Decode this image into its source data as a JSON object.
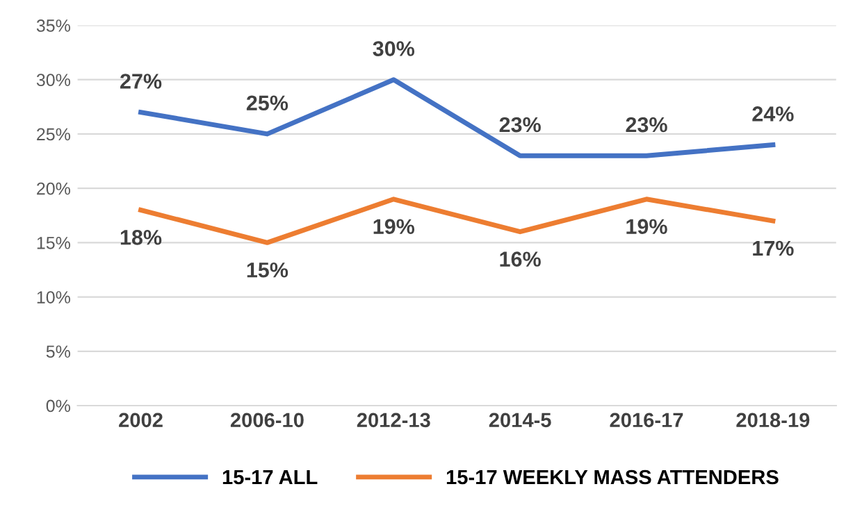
{
  "chart_data": {
    "type": "line",
    "categories": [
      "2002",
      "2006-10",
      "2012-13",
      "2014-5",
      "2016-17",
      "2018-19"
    ],
    "series": [
      {
        "name": "15-17 ALL",
        "color": "#4472c4",
        "values": [
          27,
          25,
          30,
          23,
          23,
          24
        ],
        "value_labels": [
          "27%",
          "25%",
          "30%",
          "23%",
          "23%",
          "24%"
        ]
      },
      {
        "name": "15-17 WEEKLY MASS ATTENDERS",
        "color": "#ed7d31",
        "values": [
          18,
          15,
          19,
          16,
          19,
          17
        ],
        "value_labels": [
          "18%",
          "15%",
          "19%",
          "16%",
          "19%",
          "17%"
        ]
      }
    ],
    "ylim": [
      0,
      35
    ],
    "yticks": [
      {
        "value": 0,
        "label": "0%"
      },
      {
        "value": 5,
        "label": "5%"
      },
      {
        "value": 10,
        "label": "10%"
      },
      {
        "value": 15,
        "label": "15%"
      },
      {
        "value": 20,
        "label": "20%"
      },
      {
        "value": 25,
        "label": "25%"
      },
      {
        "value": 30,
        "label": "30%"
      },
      {
        "value": 35,
        "label": "35%"
      }
    ],
    "grid": "y",
    "legend": "bottom",
    "marker": "none",
    "line_style": "solid"
  }
}
